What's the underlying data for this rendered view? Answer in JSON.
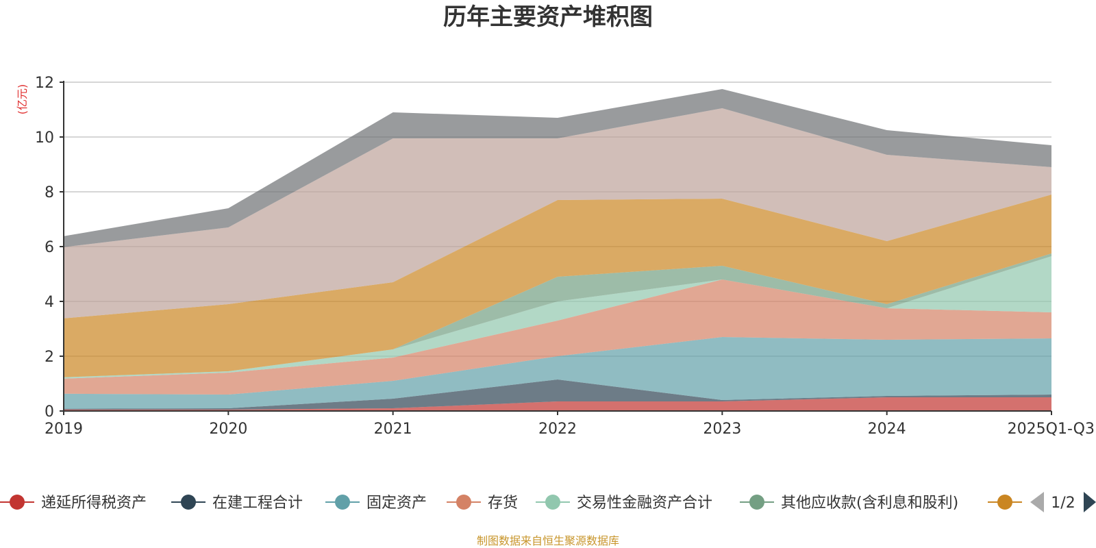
{
  "chart_data": {
    "type": "area",
    "stacked": true,
    "title": "历年主要资产堆积图",
    "ylabel": "(亿元)",
    "xlabel": "",
    "ylim": [
      0,
      12
    ],
    "yticks": [
      0,
      2,
      4,
      6,
      8,
      10,
      12
    ],
    "categories": [
      "2019",
      "2020",
      "2021",
      "2022",
      "2023",
      "2024",
      "2025Q1-Q3"
    ],
    "grid": true,
    "series": [
      {
        "name": "递延所得税资产",
        "color": "#c23531",
        "values": [
          0.05,
          0.05,
          0.1,
          0.35,
          0.35,
          0.5,
          0.5
        ]
      },
      {
        "name": "在建工程合计",
        "color": "#2f4554",
        "values": [
          0.03,
          0.05,
          0.35,
          0.8,
          0.05,
          0.05,
          0.1
        ]
      },
      {
        "name": "固定资产",
        "color": "#61a0a8",
        "values": [
          0.55,
          0.5,
          0.65,
          0.85,
          2.3,
          2.05,
          2.05
        ]
      },
      {
        "name": "存货",
        "color": "#d48265",
        "values": [
          0.55,
          0.8,
          0.85,
          1.3,
          2.1,
          1.15,
          0.95
        ]
      },
      {
        "name": "交易性金融资产合计",
        "color": "#91c7ae",
        "values": [
          0.05,
          0.05,
          0.3,
          0.7,
          0.0,
          0.0,
          2.05
        ]
      },
      {
        "name": "其他应收款(含利息和股利)",
        "color": "#749f83",
        "values": [
          0.0,
          0.0,
          0.0,
          0.9,
          0.5,
          0.15,
          0.1
        ]
      },
      {
        "name": "",
        "color": "#ca8622",
        "values": [
          2.15,
          2.45,
          2.45,
          2.8,
          2.45,
          2.3,
          2.15
        ]
      },
      {
        "name": "",
        "color": "#bda29a",
        "values": [
          2.6,
          2.8,
          5.25,
          2.25,
          3.3,
          3.15,
          1.0
        ]
      },
      {
        "name": "",
        "color": "#6e7074",
        "values": [
          0.4,
          0.7,
          0.95,
          0.75,
          0.7,
          0.9,
          0.8
        ]
      }
    ],
    "legend": {
      "position": "bottom",
      "visible_entries": [
        "递延所得税资产",
        "在建工程合计",
        "固定资产",
        "存货",
        "交易性金融资产合计",
        "其他应收款(含利息和股利)"
      ],
      "page_indicator": "1/2"
    }
  },
  "footer": {
    "source_text": "制图数据来自恒生聚源数据库"
  }
}
